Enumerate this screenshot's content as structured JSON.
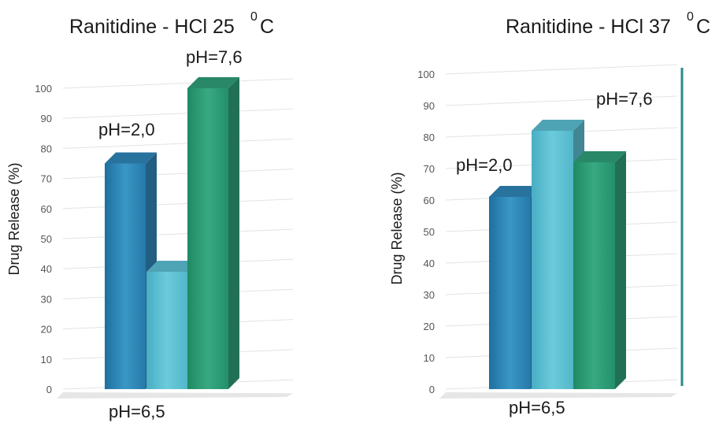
{
  "chart_data": [
    {
      "type": "bar",
      "title": "Ranitidine - HCl 25",
      "title_superscript": "0",
      "title_suffix": "C",
      "ylabel": "Drug Release (%)",
      "ylim": [
        0,
        100
      ],
      "yticks": [
        "0",
        "10",
        "20",
        "30",
        "40",
        "50",
        "60",
        "70",
        "80",
        "90",
        "100"
      ],
      "categories": [
        "pH=2,0",
        "pH=6,5",
        "pH=7,6"
      ],
      "values": [
        75,
        39,
        100
      ],
      "colors": [
        "#2f86ba",
        "#5cc0d4",
        "#2fa07a"
      ],
      "grid": true
    },
    {
      "type": "bar",
      "title": "Ranitidine - HCl 37",
      "title_superscript": "0",
      "title_suffix": "C",
      "ylabel": "Drug Release (%)",
      "ylim": [
        0,
        100
      ],
      "yticks": [
        "0",
        "10",
        "20",
        "30",
        "40",
        "50",
        "60",
        "70",
        "80",
        "90",
        "100"
      ],
      "categories": [
        "pH=2,0",
        "pH=6,5",
        "pH=7,6"
      ],
      "values": [
        61,
        82,
        72
      ],
      "colors": [
        "#2f86ba",
        "#5cc0d4",
        "#2fa07a"
      ],
      "grid": true
    }
  ]
}
